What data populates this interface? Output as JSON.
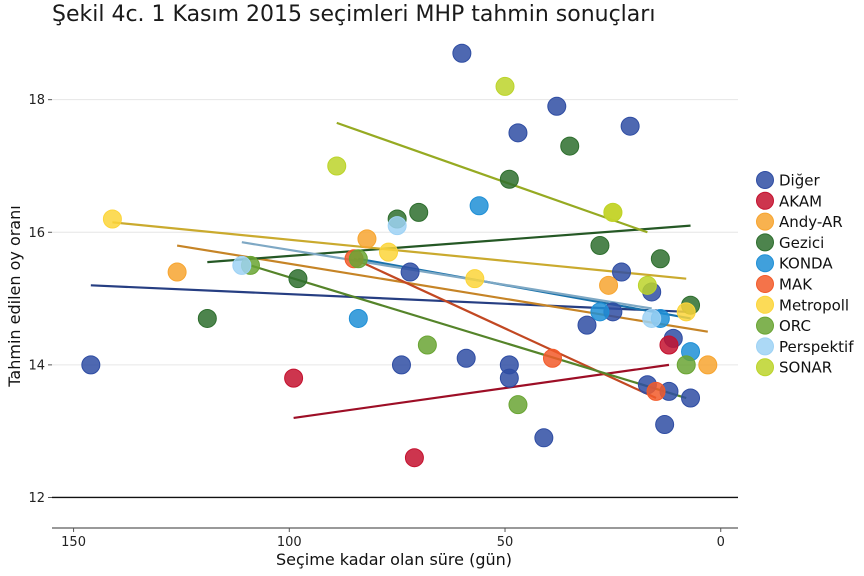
{
  "chart_data": {
    "type": "scatter",
    "title": "Şekil 4c. 1 Kasım 2015 seçimleri MHP tahmin sonuçları",
    "xlabel": "Seçime kadar olan süre (gün)",
    "ylabel": "Tahmin edilen oy oranı",
    "xlim": [
      155,
      -4
    ],
    "ylim": [
      11.6,
      18.9
    ],
    "x_ticks": [
      150,
      100,
      50,
      0
    ],
    "y_ticks": [
      12,
      14,
      16,
      18
    ],
    "reference_line_y": 12,
    "grid": true,
    "legend_position": "right",
    "series": [
      {
        "name": "Diğer",
        "color": "#2f4da3",
        "points": [
          [
            146,
            14.0
          ],
          [
            74,
            14.0
          ],
          [
            72,
            15.4
          ],
          [
            60,
            18.7
          ],
          [
            59,
            14.1
          ],
          [
            49,
            14.0
          ],
          [
            49,
            13.8
          ],
          [
            47,
            17.5
          ],
          [
            41,
            12.9
          ],
          [
            38,
            17.9
          ],
          [
            31,
            14.6
          ],
          [
            25,
            14.8
          ],
          [
            23,
            15.4
          ],
          [
            21,
            17.6
          ],
          [
            17,
            13.7
          ],
          [
            16,
            15.1
          ],
          [
            13,
            13.1
          ],
          [
            12,
            13.6
          ],
          [
            11,
            14.4
          ],
          [
            7,
            13.5
          ]
        ],
        "trend": [
          [
            146,
            15.2
          ],
          [
            8,
            14.8
          ]
        ]
      },
      {
        "name": "AKAM",
        "color": "#c4122f",
        "points": [
          [
            99,
            13.8
          ],
          [
            71,
            12.6
          ],
          [
            12,
            14.3
          ]
        ],
        "trend": [
          [
            99,
            13.2
          ],
          [
            12,
            14.0
          ]
        ]
      },
      {
        "name": "Andy-AR",
        "color": "#f7a530",
        "points": [
          [
            126,
            15.4
          ],
          [
            82,
            15.9
          ],
          [
            26,
            15.2
          ],
          [
            3,
            14.0
          ]
        ],
        "trend": [
          [
            126,
            15.8
          ],
          [
            3,
            14.5
          ]
        ]
      },
      {
        "name": "Gezici",
        "color": "#2e6e2e",
        "points": [
          [
            119,
            14.7
          ],
          [
            98,
            15.3
          ],
          [
            75,
            16.2
          ],
          [
            70,
            16.3
          ],
          [
            49,
            16.8
          ],
          [
            35,
            17.3
          ],
          [
            28,
            15.8
          ],
          [
            14,
            15.6
          ],
          [
            7,
            14.9
          ]
        ],
        "trend": [
          [
            119,
            15.55
          ],
          [
            7,
            16.1
          ]
        ]
      },
      {
        "name": "KONDA",
        "color": "#1f8fd6",
        "points": [
          [
            84,
            14.7
          ],
          [
            56,
            16.4
          ],
          [
            28,
            14.8
          ],
          [
            14,
            14.7
          ],
          [
            7,
            14.2
          ]
        ],
        "trend": [
          [
            84,
            15.6
          ],
          [
            7,
            14.7
          ]
        ]
      },
      {
        "name": "MAK",
        "color": "#f25a2a",
        "points": [
          [
            85,
            15.6
          ],
          [
            39,
            14.1
          ],
          [
            15,
            13.6
          ]
        ],
        "trend": [
          [
            85,
            15.6
          ],
          [
            15,
            13.5
          ]
        ]
      },
      {
        "name": "Metropoll",
        "color": "#fcd53a",
        "points": [
          [
            141,
            16.2
          ],
          [
            77,
            15.7
          ],
          [
            57,
            15.3
          ],
          [
            25,
            16.3
          ],
          [
            8,
            14.8
          ]
        ],
        "trend": [
          [
            141,
            16.15
          ],
          [
            8,
            15.3
          ]
        ]
      },
      {
        "name": "ORC",
        "color": "#6aa534",
        "points": [
          [
            109,
            15.5
          ],
          [
            84,
            15.6
          ],
          [
            68,
            14.3
          ],
          [
            47,
            13.4
          ],
          [
            8,
            14.0
          ]
        ],
        "trend": [
          [
            109,
            15.5
          ],
          [
            8,
            13.5
          ]
        ]
      },
      {
        "name": "Perspektif",
        "color": "#9ed2f5",
        "points": [
          [
            111,
            15.5
          ],
          [
            75,
            16.1
          ],
          [
            16,
            14.7
          ]
        ],
        "trend": [
          [
            111,
            15.85
          ],
          [
            16,
            14.85
          ]
        ]
      },
      {
        "name": "SONAR",
        "color": "#bcd42a",
        "points": [
          [
            89,
            17.0
          ],
          [
            50,
            18.2
          ],
          [
            25,
            16.3
          ],
          [
            17,
            15.2
          ]
        ],
        "trend": [
          [
            89,
            17.65
          ],
          [
            17,
            16.0
          ]
        ]
      }
    ]
  }
}
